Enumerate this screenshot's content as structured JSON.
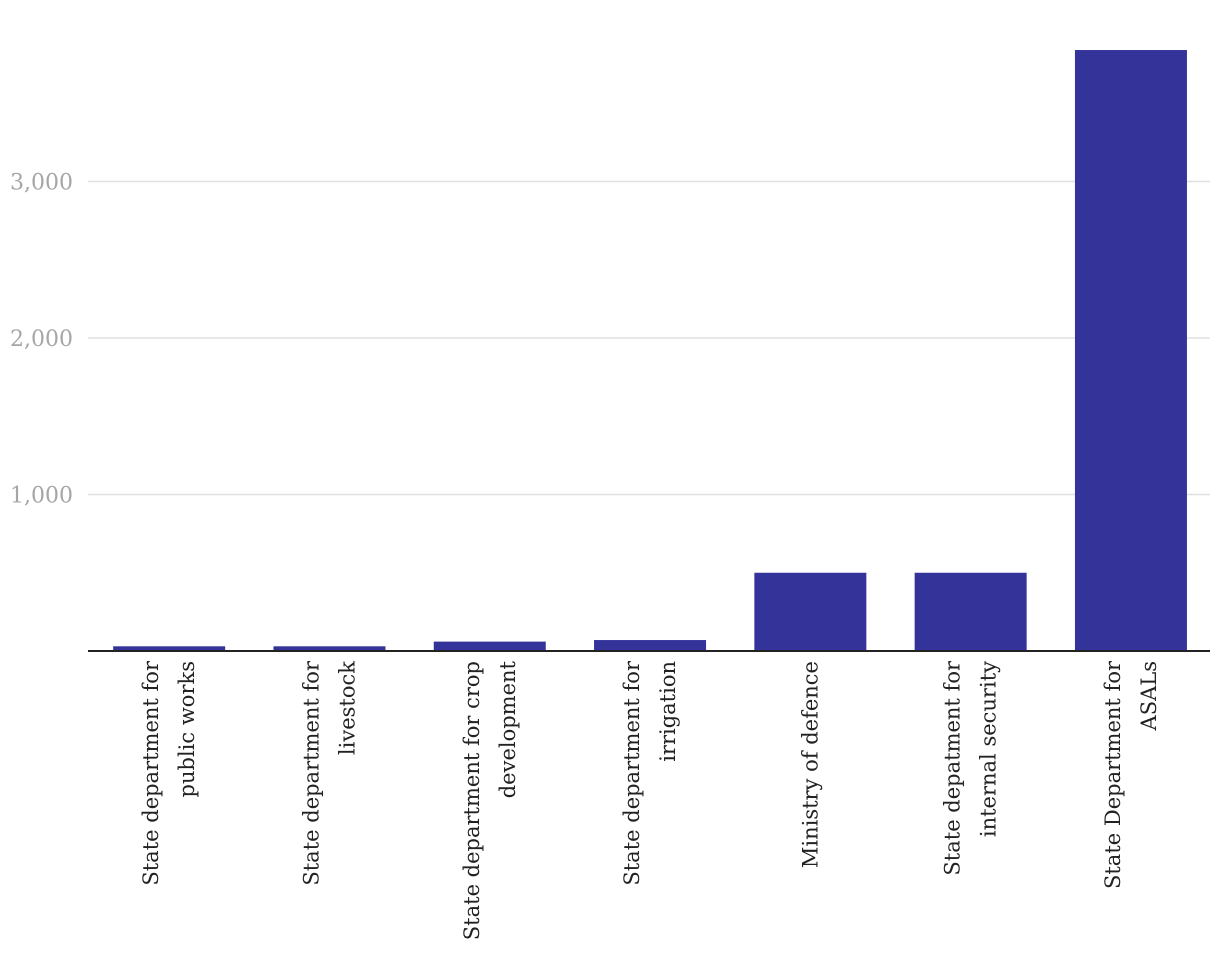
{
  "colors": {
    "bar": "#333399",
    "grid": "#e0e0e0",
    "axis": "#222222",
    "tick_text": "#a6a6a6",
    "label_text": "#222222"
  },
  "chart_data": {
    "type": "bar",
    "title": "",
    "xlabel": "",
    "ylabel": "",
    "ylim": [
      0,
      3800
    ],
    "yticks": [
      1000,
      2000,
      3000
    ],
    "ytick_labels": [
      "1,000",
      "2,000",
      "3,000"
    ],
    "grid": true,
    "categories": [
      [
        "State department for",
        "public works"
      ],
      [
        "State department for",
        "livestock"
      ],
      [
        "State department for crop",
        "development"
      ],
      [
        "State department for",
        "irrigation"
      ],
      [
        "Ministry of defence"
      ],
      [
        "State depatment for",
        "internal security"
      ],
      [
        "State Department for",
        "ASALs"
      ]
    ],
    "values": [
      30,
      30,
      60,
      70,
      500,
      500,
      3840
    ]
  }
}
